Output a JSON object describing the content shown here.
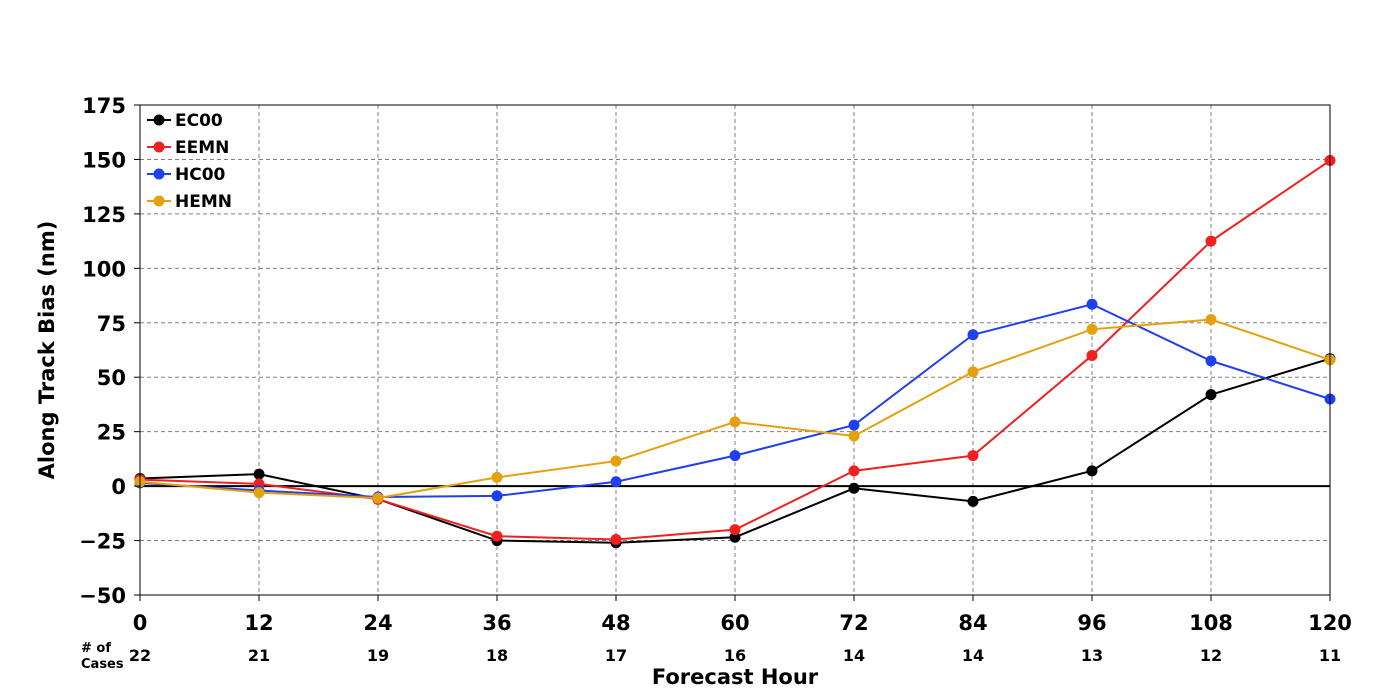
{
  "chart_data": {
    "type": "line",
    "title": "",
    "xlabel": "Forecast Hour",
    "ylabel": "Along Track Bias (nm)",
    "x": [
      0,
      12,
      24,
      36,
      48,
      60,
      72,
      84,
      96,
      108,
      120
    ],
    "x_tick_labels": [
      "0",
      "12",
      "24",
      "36",
      "48",
      "60",
      "72",
      "84",
      "96",
      "108",
      "120"
    ],
    "xlim": [
      0,
      120
    ],
    "ylim": [
      -50,
      175
    ],
    "y_ticks": [
      -50,
      -25,
      0,
      25,
      50,
      75,
      100,
      125,
      150,
      175
    ],
    "y_tick_labels": [
      "−50",
      "−25",
      "0",
      "25",
      "50",
      "75",
      "100",
      "125",
      "150",
      "175"
    ],
    "grid": true,
    "legend_position": "top-left",
    "cases_title_line1": "# of",
    "cases_title_line2": "Cases",
    "cases": [
      "22",
      "21",
      "19",
      "18",
      "17",
      "16",
      "14",
      "14",
      "13",
      "12",
      "11"
    ],
    "series": [
      {
        "name": "EC00",
        "color": "#000000",
        "values": [
          3.5,
          5.5,
          -6,
          -25,
          -26,
          -23.5,
          -1,
          -7,
          7,
          42,
          58.5
        ]
      },
      {
        "name": "EEMN",
        "color": "#f02020",
        "values": [
          3,
          1,
          -6,
          -23,
          -24.5,
          -20,
          7,
          14,
          60,
          112.5,
          149.5
        ]
      },
      {
        "name": "HC00",
        "color": "#2040f0",
        "values": [
          1.5,
          -2,
          -5,
          -4.5,
          2,
          14,
          28,
          69.5,
          83.5,
          57.5,
          40
        ]
      },
      {
        "name": "HEMN",
        "color": "#e5a00d",
        "values": [
          2,
          -3,
          -5.5,
          4,
          11.5,
          29.5,
          23,
          52.5,
          72,
          76.5,
          58
        ]
      }
    ]
  }
}
